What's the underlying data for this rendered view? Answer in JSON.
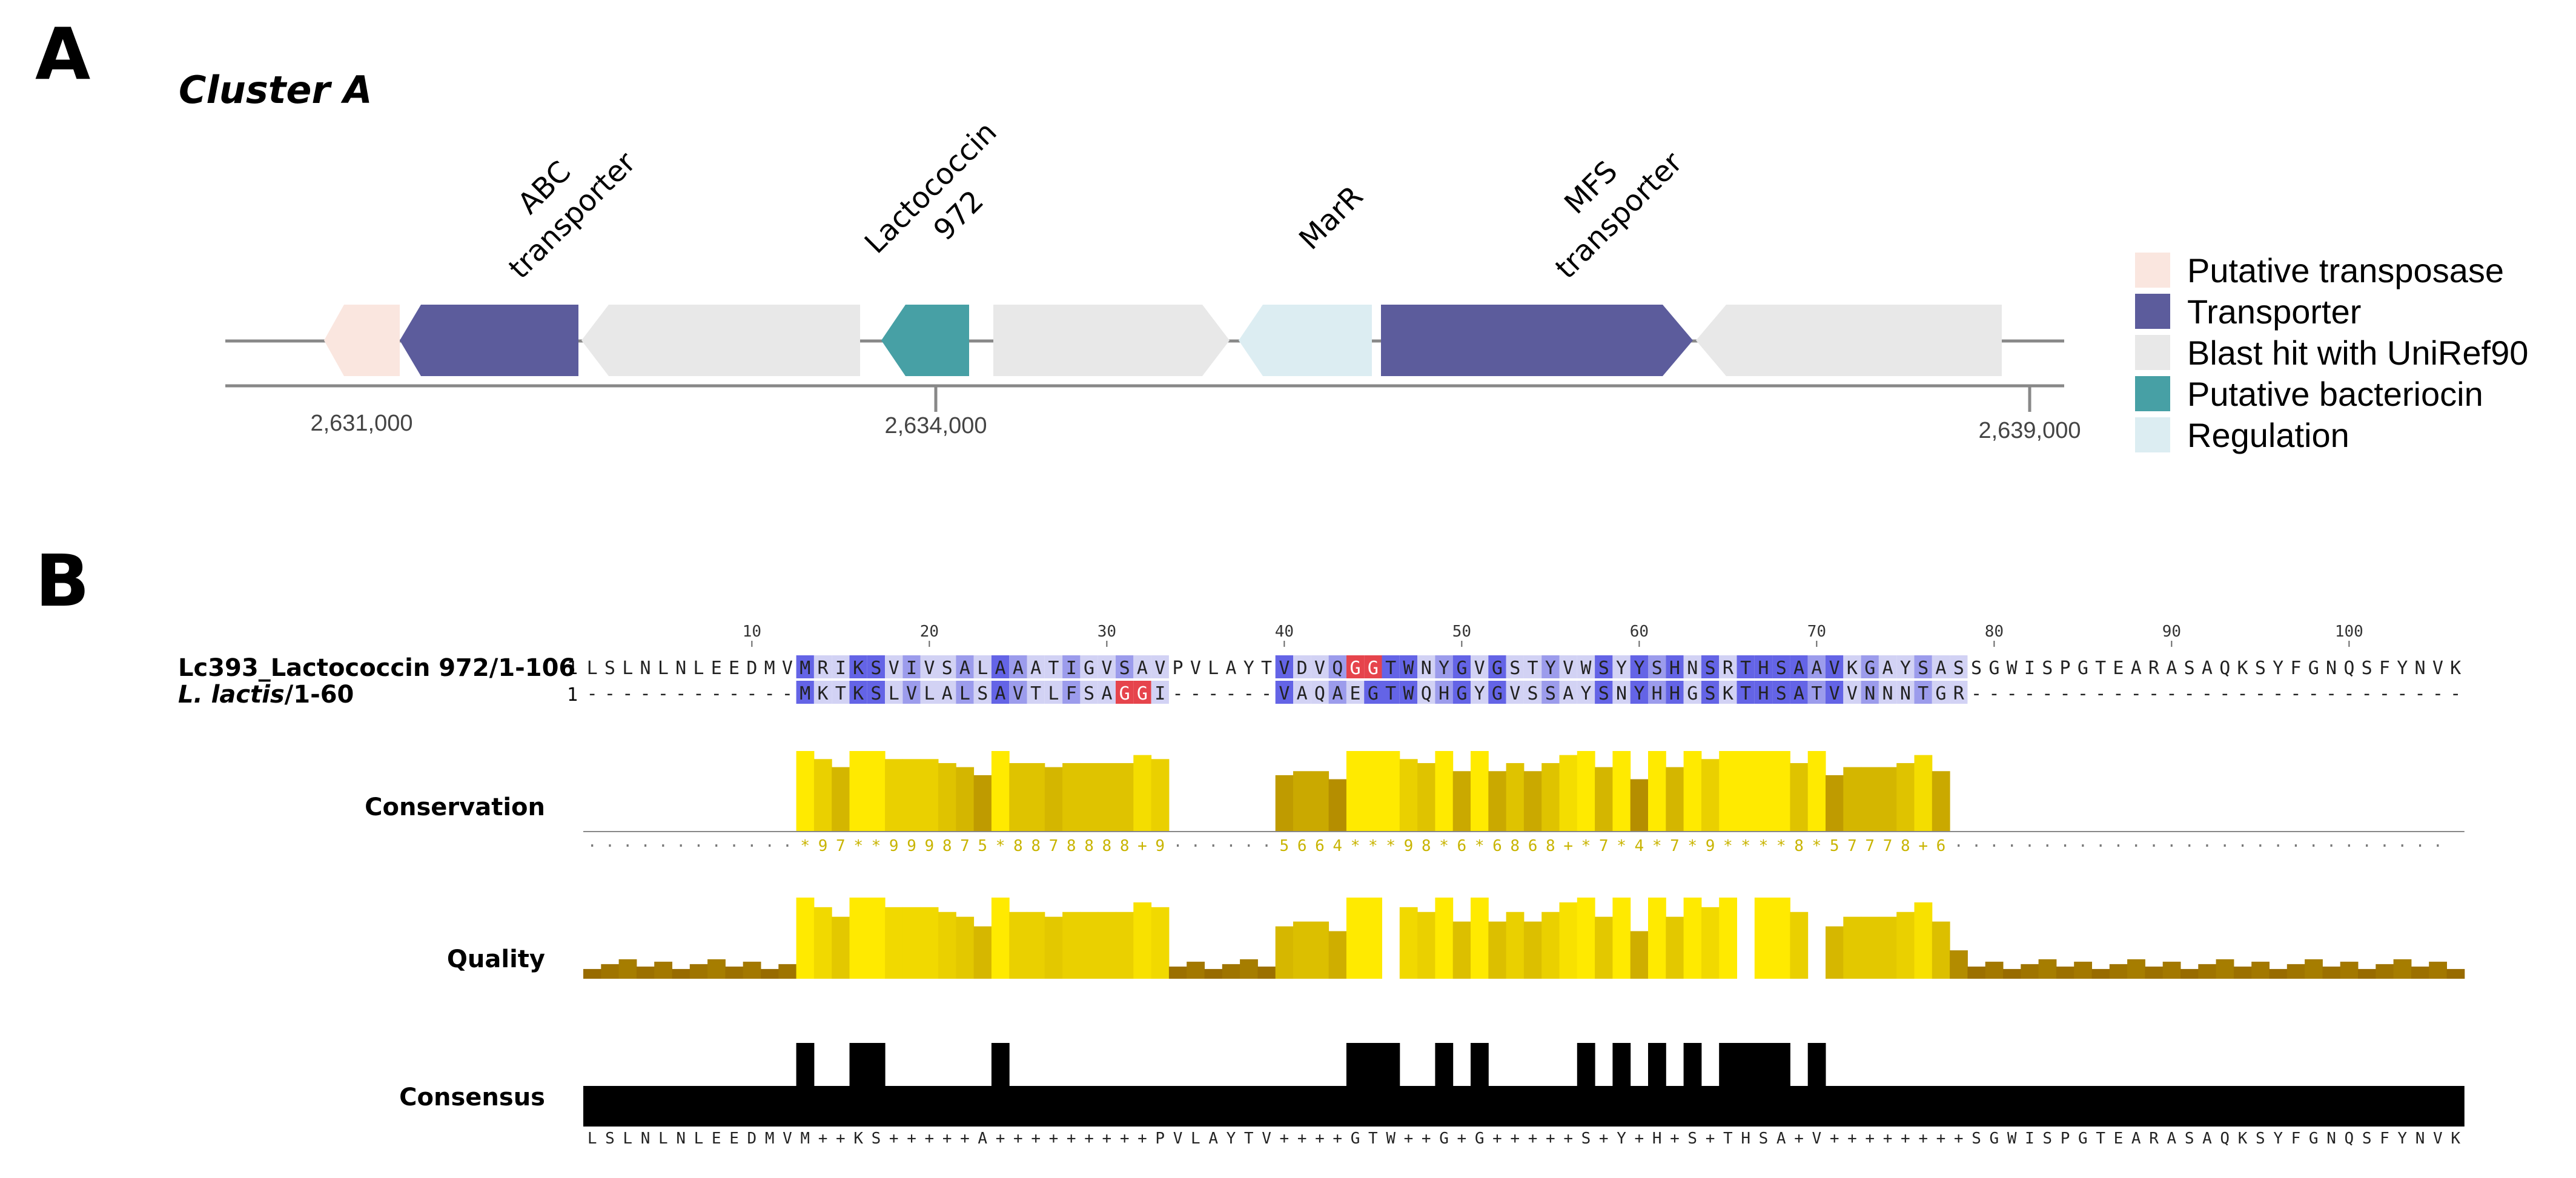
{
  "panel_a": {
    "letter": "A",
    "cluster_title": "Cluster A",
    "gene_labels": [
      {
        "line1": "ABC",
        "line2": "transporter"
      },
      {
        "line1": "Lactococcin",
        "line2": "972"
      },
      {
        "line1": "MarR",
        "line2": ""
      },
      {
        "line1": "MFS",
        "line2": "transporter"
      }
    ],
    "coordinates": [
      "2,631,000",
      "2,634,000",
      "2,639,000"
    ],
    "legend": [
      {
        "label": "Putative transposase",
        "color": "#fae6df"
      },
      {
        "label": "Transporter",
        "color": "#5c5c9c"
      },
      {
        "label": "Blast hit with UniRef90",
        "color": "#e8e8e8"
      },
      {
        "label": "Putative bacteriocin",
        "color": "#47a0a5"
      },
      {
        "label": "Regulation",
        "color": "#dcedf2"
      }
    ],
    "gene_colors": {
      "transposase": "#fae6df",
      "transporter": "#5c5c9c",
      "blast": "#e8e8e8",
      "bacteriocin": "#47a0a5",
      "regulation": "#dcedf2"
    }
  },
  "panel_b": {
    "letter": "B",
    "ruler_ticks": [
      "10",
      "20",
      "30",
      "40",
      "50",
      "60",
      "70",
      "80",
      "90",
      "100"
    ],
    "sequences": [
      {
        "name": "Lc393_Lactococcin 972/1-106",
        "name_italic": "",
        "name_suffix": "",
        "start": "1",
        "residues": "LSLNLNLEEDMVMRIKSVIVSALAAATIGVSAVPVLAYTVDVQGGTWNYGVGSTYVWSYYSHNSRTHSAAVKGAYSASSGWISPGTEARASAQKSYFGNQSFYNVK"
      },
      {
        "name": "",
        "name_italic": "L. lactis",
        "name_suffix": "/1-60",
        "start": "1",
        "residues": "------------MKTKSLVLALSAVTLFSAGGI------VAQAEGTWQHGYGVSSAYSNYHHGSKTHSATVVNNNTGR-----------------------------"
      }
    ],
    "track_labels": {
      "conservation": "Conservation",
      "quality": "Quality",
      "consensus": "Consensus"
    },
    "conservation_text": "------------*97**999875*8878888+9------5664***98*6*6868+*7*4*7*9****8*57778+6----------------------------",
    "consensus_text": "LSLNLNLEEDMVM++KS+++++A+++++++++PVLAYTV++++GTW++G+G+++++S+Y+H+S+THSA+V++++++++SGWISPGTEARASAQKSYFGNQSFYNVK",
    "colors": {
      "identity_strong": "#6464e6",
      "identity_medium": "#9c9cec",
      "identity_light": "#d2d2f4",
      "gly_highlight": "#e6444c",
      "conservation_color": "#c8b400",
      "quality_low": "#8a5a00",
      "quality_high": "#ffea00"
    }
  }
}
